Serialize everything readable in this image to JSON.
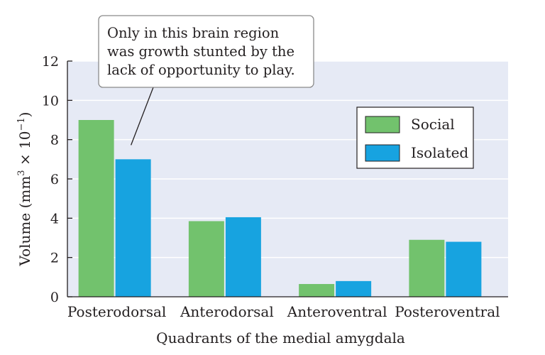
{
  "chart_data": {
    "type": "bar",
    "categories": [
      "Posterodorsal",
      "Anterodorsal",
      "Anteroventral",
      "Posteroventral"
    ],
    "series": [
      {
        "name": "Social",
        "values": [
          9.0,
          3.85,
          0.65,
          2.9
        ],
        "color": "#72c26d"
      },
      {
        "name": "Isolated",
        "values": [
          7.0,
          4.05,
          0.8,
          2.8
        ],
        "color": "#17a3e0"
      }
    ],
    "xlabel": "Quadrants of the medial amygdala",
    "ylabel": {
      "prefix": "Volume (mm",
      "exp1": "3",
      "mid": " × 10",
      "exp2": "−1",
      "suffix": ")"
    },
    "ylim": [
      0,
      12
    ],
    "yticks": [
      "0",
      "2",
      "4",
      "6",
      "8",
      "10",
      "12"
    ],
    "grid": true,
    "plot_background": "#e6eaf5",
    "legend_position": "top-right",
    "annotation": {
      "lines": [
        "Only in this brain region",
        "was growth stunted by the",
        "lack of opportunity to play."
      ],
      "target_category": "Posterodorsal",
      "target_series": "Isolated"
    }
  }
}
